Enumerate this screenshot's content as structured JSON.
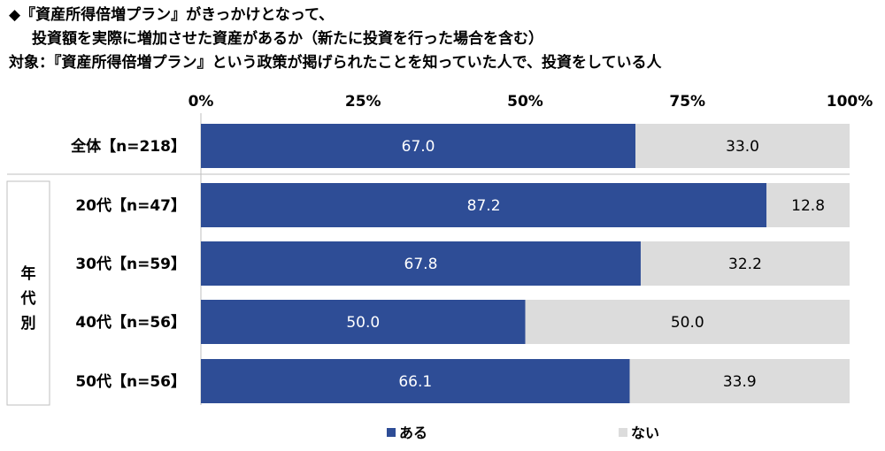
{
  "titles": {
    "line1": "◆『資産所得倍増プラン』がきっかけとなって、",
    "line2": "投資額を実際に増加させた資産があるか（新たに投資を行った場合を含む）",
    "line3": "対象：『資産所得倍増プラン』という政策が掲げられたことを知っていた人で、投資をしている人"
  },
  "colors": {
    "yes": "#2E4D96",
    "no": "#DCDCDC",
    "grid": "#BFBFBF"
  },
  "chart_data": {
    "type": "bar",
    "orientation": "horizontal",
    "stacked": true,
    "percent_stacked": true,
    "xlim": [
      0,
      100
    ],
    "x_ticks": [
      "0%",
      "25%",
      "50%",
      "75%",
      "100%"
    ],
    "grid": false,
    "legend_position": "bottom",
    "group_label": "年代別",
    "categories": [
      "全体【n=218】",
      "20代【n=47】",
      "30代【n=59】",
      "40代【n=56】",
      "50代【n=56】"
    ],
    "series": [
      {
        "name": "ある",
        "values": [
          67.0,
          87.2,
          67.8,
          50.0,
          66.1
        ],
        "labels": [
          "67.0",
          "87.2",
          "67.8",
          "50.0",
          "66.1"
        ]
      },
      {
        "name": "ない",
        "values": [
          33.0,
          12.8,
          32.2,
          50.0,
          33.9
        ],
        "labels": [
          "33.0",
          "12.8",
          "32.2",
          "50.0",
          "33.9"
        ]
      }
    ]
  }
}
